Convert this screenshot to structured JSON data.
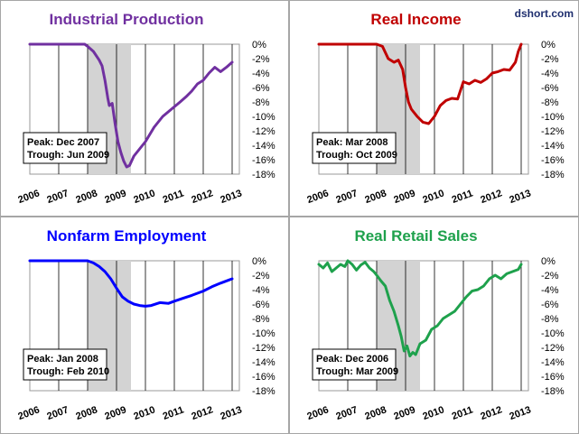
{
  "credit": "dshort.com",
  "x_tick_labels": [
    "2006",
    "2007",
    "2008",
    "2009",
    "2010",
    "2011",
    "2012",
    "2013"
  ],
  "y_tick_labels": [
    "0%",
    "-2%",
    "-4%",
    "-6%",
    "-8%",
    "-10%",
    "-12%",
    "-14%",
    "-16%",
    "-18%"
  ],
  "chart_data": [
    {
      "type": "line",
      "title": "Industrial Production",
      "color": "#7030a0",
      "xlim": [
        2006,
        2013.25
      ],
      "ylim": [
        -18,
        0
      ],
      "grid": true,
      "recession": [
        2008.0,
        2009.5
      ],
      "peak_label": "Peak: Dec 2007",
      "trough_label": "Trough: Jun 2009",
      "series": [
        {
          "x": [
            2006.0,
            2006.3,
            2006.6,
            2006.9,
            2007.2,
            2007.5,
            2007.7,
            2007.9,
            2008.0,
            2008.2,
            2008.4,
            2008.5,
            2008.6,
            2008.7,
            2008.75,
            2008.85,
            2008.95,
            2009.05,
            2009.15,
            2009.25,
            2009.35,
            2009.45,
            2009.6,
            2009.8,
            2010.0,
            2010.3,
            2010.6,
            2010.9,
            2011.2,
            2011.4,
            2011.6,
            2011.8,
            2012.0,
            2012.2,
            2012.4,
            2012.6,
            2012.8,
            2013.0
          ],
          "y": [
            0,
            0,
            0,
            0,
            0,
            0,
            0,
            0,
            -0.3,
            -1.0,
            -2.2,
            -3.0,
            -5.0,
            -7.5,
            -8.5,
            -8.2,
            -11.0,
            -13.5,
            -15.0,
            -16.2,
            -17.0,
            -16.8,
            -15.5,
            -14.5,
            -13.5,
            -11.5,
            -10.0,
            -9.0,
            -8.0,
            -7.3,
            -6.5,
            -5.5,
            -5.0,
            -4.0,
            -3.2,
            -3.8,
            -3.2,
            -2.5
          ]
        }
      ]
    },
    {
      "type": "line",
      "title": "Real Income",
      "color": "#c00000",
      "xlim": [
        2006,
        2013.25
      ],
      "ylim": [
        -18,
        0
      ],
      "grid": true,
      "recession": [
        2008.0,
        2009.5
      ],
      "peak_label": "Peak: Mar 2008",
      "trough_label": "Trough: Oct 2009",
      "series": [
        {
          "x": [
            2006.0,
            2006.5,
            2007.0,
            2007.5,
            2008.0,
            2008.2,
            2008.4,
            2008.6,
            2008.75,
            2008.9,
            2009.0,
            2009.1,
            2009.2,
            2009.4,
            2009.6,
            2009.8,
            2010.0,
            2010.2,
            2010.4,
            2010.6,
            2010.8,
            2011.0,
            2011.2,
            2011.4,
            2011.6,
            2011.8,
            2012.0,
            2012.2,
            2012.4,
            2012.6,
            2012.8,
            2012.9,
            2013.0
          ],
          "y": [
            0,
            0,
            0,
            0,
            0,
            -0.3,
            -2.0,
            -2.5,
            -2.2,
            -3.5,
            -6.0,
            -8.0,
            -9.0,
            -10.0,
            -10.8,
            -11.0,
            -10.0,
            -8.5,
            -7.8,
            -7.5,
            -7.6,
            -5.2,
            -5.5,
            -5.0,
            -5.3,
            -4.8,
            -4.0,
            -3.8,
            -3.5,
            -3.6,
            -2.5,
            -1.0,
            0
          ]
        }
      ]
    },
    {
      "type": "line",
      "title": "Nonfarm Employment",
      "color": "#0000ff",
      "xlim": [
        2006,
        2013.25
      ],
      "ylim": [
        -18,
        0
      ],
      "grid": true,
      "recession": [
        2008.0,
        2009.5
      ],
      "peak_label": "Peak: Jan 2008",
      "trough_label": "Trough: Feb 2010",
      "series": [
        {
          "x": [
            2006.0,
            2006.5,
            2007.0,
            2007.5,
            2008.0,
            2008.2,
            2008.4,
            2008.6,
            2008.8,
            2009.0,
            2009.2,
            2009.4,
            2009.6,
            2009.8,
            2010.0,
            2010.2,
            2010.5,
            2010.8,
            2011.0,
            2011.3,
            2011.6,
            2012.0,
            2012.3,
            2012.6,
            2013.0
          ],
          "y": [
            0,
            0,
            0,
            0,
            0,
            -0.3,
            -0.8,
            -1.5,
            -2.5,
            -3.8,
            -5.0,
            -5.6,
            -6.0,
            -6.2,
            -6.3,
            -6.2,
            -5.8,
            -5.9,
            -5.6,
            -5.2,
            -4.8,
            -4.2,
            -3.6,
            -3.1,
            -2.5
          ]
        }
      ]
    },
    {
      "type": "line",
      "title": "Real Retail Sales",
      "color": "#1ea14c",
      "xlim": [
        2006,
        2013.25
      ],
      "ylim": [
        -18,
        0
      ],
      "grid": true,
      "recession": [
        2008.0,
        2009.5
      ],
      "peak_label": "Peak: Dec 2006",
      "trough_label": "Trough: Mar 2009",
      "series": [
        {
          "x": [
            2006.0,
            2006.15,
            2006.3,
            2006.45,
            2006.6,
            2006.75,
            2006.9,
            2007.0,
            2007.15,
            2007.3,
            2007.45,
            2007.6,
            2007.75,
            2007.9,
            2008.0,
            2008.15,
            2008.3,
            2008.45,
            2008.6,
            2008.75,
            2008.85,
            2008.95,
            2009.05,
            2009.15,
            2009.25,
            2009.35,
            2009.5,
            2009.7,
            2009.9,
            2010.1,
            2010.3,
            2010.5,
            2010.7,
            2010.9,
            2011.1,
            2011.3,
            2011.5,
            2011.7,
            2011.9,
            2012.1,
            2012.3,
            2012.5,
            2012.7,
            2012.9,
            2013.0
          ],
          "y": [
            -0.5,
            -1.0,
            -0.3,
            -1.5,
            -1.0,
            -0.5,
            -0.8,
            0,
            -0.5,
            -1.3,
            -0.6,
            -0.2,
            -1.0,
            -1.5,
            -2.0,
            -2.8,
            -3.5,
            -5.5,
            -7.0,
            -9.0,
            -10.5,
            -12.5,
            -11.8,
            -13.2,
            -12.7,
            -13.0,
            -11.5,
            -11.0,
            -9.5,
            -9.0,
            -8.0,
            -7.5,
            -7.0,
            -6.0,
            -5.0,
            -4.2,
            -4.0,
            -3.5,
            -2.5,
            -2.0,
            -2.5,
            -1.8,
            -1.5,
            -1.2,
            -0.5
          ]
        }
      ]
    }
  ]
}
